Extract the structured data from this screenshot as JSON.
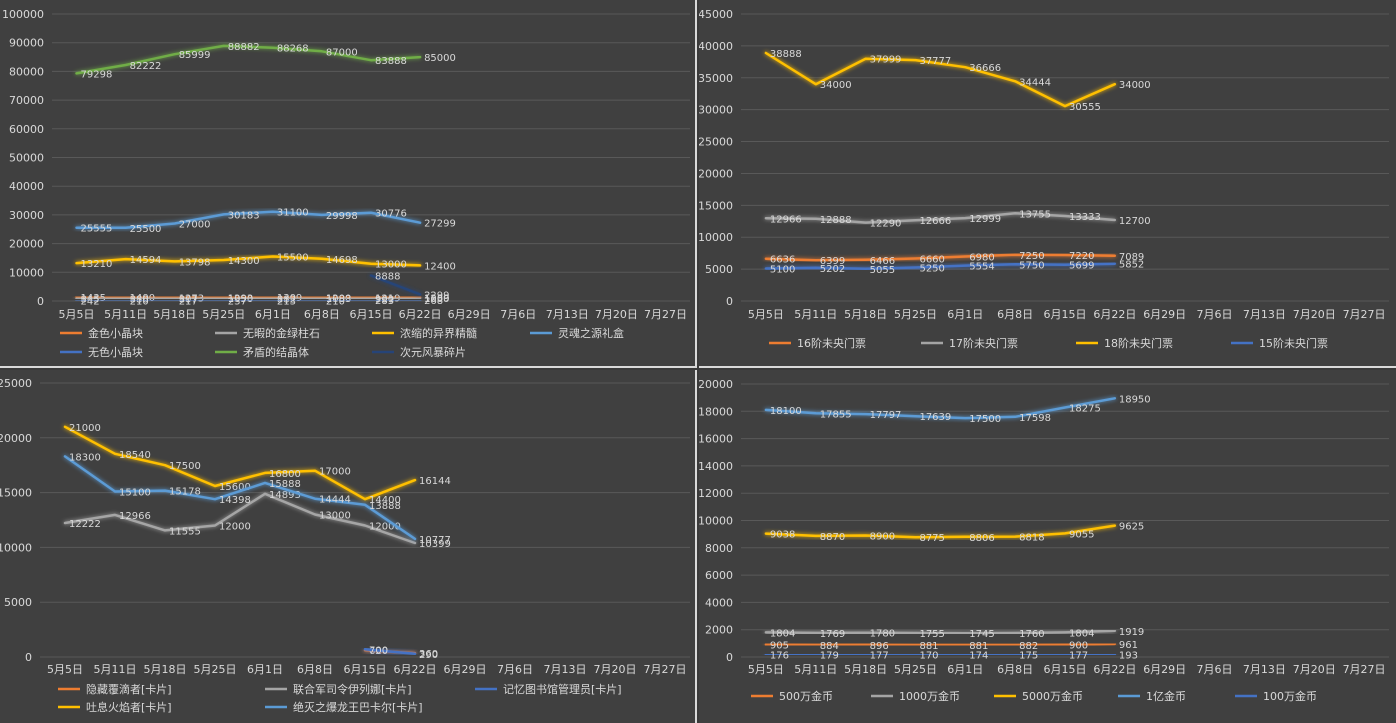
{
  "chart_data": [
    {
      "type": "line",
      "categories": [
        "5月5日",
        "5月11日",
        "5月18日",
        "5月25日",
        "6月1日",
        "6月8日",
        "6月15日",
        "6月22日",
        "6月29日",
        "7月6日",
        "7月13日",
        "7月20日",
        "7月27日"
      ],
      "ylim": [
        0,
        100000
      ],
      "yticks": [
        0,
        10000,
        20000,
        30000,
        40000,
        50000,
        60000,
        70000,
        80000,
        90000,
        100000
      ],
      "legend_position": "bottom",
      "series": [
        {
          "name": "金色小晶块",
          "color": "#ed7d31",
          "values": [
            1435,
            1400,
            1273,
            1293,
            1309,
            1200,
            1219,
            1259,
            null,
            null,
            null,
            null,
            null
          ]
        },
        {
          "name": "无暇的金绿柱石",
          "color": "#a5a5a5",
          "values": [
            845,
            880,
            807,
            1050,
            882,
            1083,
            900,
            1000,
            null,
            null,
            null,
            null,
            null
          ]
        },
        {
          "name": "浓缩的异界精髓",
          "color": "#ffc000",
          "values": [
            13210,
            14594,
            13798,
            14300,
            15500,
            14698,
            13000,
            12400,
            null,
            null,
            null,
            null,
            null
          ]
        },
        {
          "name": "灵魂之源礼盒",
          "color": "#5b9bd5",
          "values": [
            25555,
            25500,
            27000,
            30183,
            31100,
            29998,
            30776,
            27299,
            null,
            null,
            null,
            null,
            null
          ]
        },
        {
          "name": "无色小晶块",
          "color": "#4472c4",
          "values": [
            242,
            210,
            217,
            237,
            213,
            210,
            283,
            268,
            null,
            null,
            null,
            null,
            null
          ]
        },
        {
          "name": "矛盾的结晶体",
          "color": "#70ad47",
          "values": [
            79298,
            82222,
            85999,
            88882,
            88268,
            87000,
            83888,
            85000,
            null,
            null,
            null,
            null,
            null
          ]
        },
        {
          "name": "次元风暴碎片",
          "color": "#264478",
          "values": [
            null,
            null,
            null,
            null,
            null,
            null,
            8888,
            2299,
            null,
            null,
            null,
            null,
            null
          ]
        }
      ]
    },
    {
      "type": "line",
      "categories": [
        "5月5日",
        "5月11日",
        "5月18日",
        "5月25日",
        "6月1日",
        "6月8日",
        "6月15日",
        "6月22日",
        "6月29日",
        "7月6日",
        "7月13日",
        "7月20日",
        "7月27日"
      ],
      "ylim": [
        0,
        45000
      ],
      "yticks": [
        0,
        5000,
        10000,
        15000,
        20000,
        25000,
        30000,
        35000,
        40000,
        45000
      ],
      "legend_position": "bottom",
      "series": [
        {
          "name": "16阶未央门票",
          "color": "#ed7d31",
          "values": [
            6636,
            6399,
            6466,
            6660,
            6980,
            7250,
            7220,
            7089,
            null,
            null,
            null,
            null,
            null
          ]
        },
        {
          "name": "17阶未央门票",
          "color": "#a5a5a5",
          "values": [
            12966,
            12888,
            12290,
            12666,
            12999,
            13755,
            13333,
            12700,
            null,
            null,
            null,
            null,
            null
          ]
        },
        {
          "name": "18阶未央门票",
          "color": "#ffc000",
          "values": [
            38888,
            34000,
            37999,
            37777,
            36666,
            34444,
            30555,
            34000,
            null,
            null,
            null,
            null,
            null
          ]
        },
        {
          "name": "15阶未央门票",
          "color": "#4472c4",
          "values": [
            5100,
            5202,
            5055,
            5250,
            5554,
            5750,
            5699,
            5852,
            null,
            null,
            null,
            null,
            null
          ]
        }
      ]
    },
    {
      "type": "line",
      "categories": [
        "5月5日",
        "5月11日",
        "5月18日",
        "5月25日",
        "6月1日",
        "6月8日",
        "6月15日",
        "6月22日",
        "6月29日",
        "7月6日",
        "7月13日",
        "7月20日",
        "7月27日"
      ],
      "ylim": [
        0,
        25000
      ],
      "yticks": [
        0,
        5000,
        10000,
        15000,
        20000,
        25000
      ],
      "legend_position": "bottom",
      "series": [
        {
          "name": "隐藏覆滴者[卡片]",
          "color": "#ed7d31",
          "values": [
            null,
            null,
            null,
            null,
            null,
            null,
            620,
            360,
            null,
            null,
            null,
            null,
            null
          ]
        },
        {
          "name": "联合军司令伊列娜[卡片]",
          "color": "#a5a5a5",
          "values": [
            12222,
            12966,
            11555,
            12000,
            14893,
            13000,
            12000,
            10399,
            null,
            null,
            null,
            null,
            null
          ]
        },
        {
          "name": "记忆图书馆管理员[卡片]",
          "color": "#4472c4",
          "values": [
            null,
            null,
            null,
            null,
            null,
            null,
            700,
            290,
            null,
            null,
            null,
            null,
            null
          ]
        },
        {
          "name": "吐息火焰者[卡片]",
          "color": "#ffc000",
          "values": [
            21000,
            18540,
            17500,
            15600,
            16800,
            17000,
            14400,
            16144,
            null,
            null,
            null,
            null,
            null
          ]
        },
        {
          "name": "绝灭之爆龙王巴卡尔[卡片]",
          "color": "#5b9bd5",
          "values": [
            18300,
            15100,
            15178,
            14398,
            15888,
            14444,
            13888,
            10777,
            null,
            null,
            null,
            null,
            null
          ]
        }
      ]
    },
    {
      "type": "line",
      "categories": [
        "5月5日",
        "5月11日",
        "5月18日",
        "5月25日",
        "6月1日",
        "6月8日",
        "6月15日",
        "6月22日",
        "6月29日",
        "7月6日",
        "7月13日",
        "7月20日",
        "7月27日"
      ],
      "ylim": [
        0,
        20000
      ],
      "yticks": [
        0,
        2000,
        4000,
        6000,
        8000,
        10000,
        12000,
        14000,
        16000,
        18000,
        20000
      ],
      "legend_position": "bottom",
      "series": [
        {
          "name": "500万金币",
          "color": "#ed7d31",
          "values": [
            905,
            884,
            896,
            881,
            881,
            882,
            900,
            961,
            null,
            null,
            null,
            null,
            null
          ]
        },
        {
          "name": "1000万金币",
          "color": "#a5a5a5",
          "values": [
            1804,
            1769,
            1780,
            1755,
            1745,
            1760,
            1804,
            1919,
            null,
            null,
            null,
            null,
            null
          ]
        },
        {
          "name": "5000万金币",
          "color": "#ffc000",
          "values": [
            9038,
            8870,
            8900,
            8775,
            8806,
            8818,
            9055,
            9625,
            null,
            null,
            null,
            null,
            null
          ]
        },
        {
          "name": "1亿金币",
          "color": "#5b9bd5",
          "values": [
            18100,
            17855,
            17797,
            17639,
            17500,
            17598,
            18275,
            18950,
            null,
            null,
            null,
            null,
            null
          ]
        },
        {
          "name": "100万金币",
          "color": "#4472c4",
          "values": [
            176,
            179,
            177,
            170,
            174,
            175,
            177,
            193,
            null,
            null,
            null,
            null,
            null
          ]
        }
      ]
    }
  ]
}
